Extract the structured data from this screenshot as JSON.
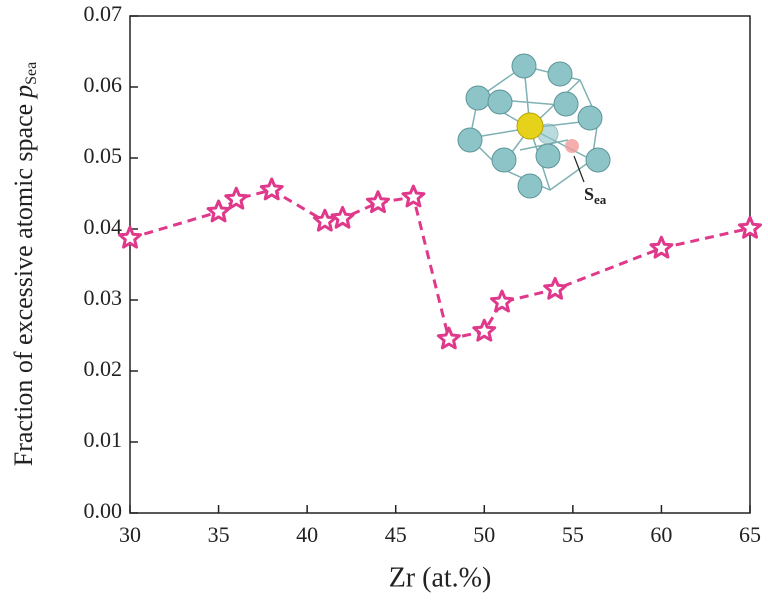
{
  "chart_data": {
    "type": "line",
    "x_label": "Zr (at.%)",
    "y_label": "Fraction of excessive atomic space",
    "y_label_symbol": "p",
    "y_label_subscript": "Sea",
    "inset_label": "S",
    "inset_label_subscript": "ea",
    "x": [
      30,
      35,
      36,
      38,
      41,
      42,
      44,
      46,
      48,
      50,
      51,
      54,
      60,
      65
    ],
    "series": [
      {
        "color": "#e0388a",
        "values": [
          0.0387,
          0.0424,
          0.0442,
          0.0455,
          0.0411,
          0.0415,
          0.0437,
          0.0445,
          0.0245,
          0.0256,
          0.0297,
          0.0315,
          0.0373,
          0.0401
        ]
      }
    ],
    "xlim": [
      30,
      65
    ],
    "xticks": [
      30,
      35,
      40,
      45,
      50,
      55,
      60,
      65
    ],
    "ylim": [
      0,
      0.07
    ],
    "yticks": [
      {
        "value": 0,
        "label": "0.00"
      },
      0.01,
      0.02,
      0.03,
      0.04,
      0.05,
      0.06,
      0.07
    ]
  }
}
